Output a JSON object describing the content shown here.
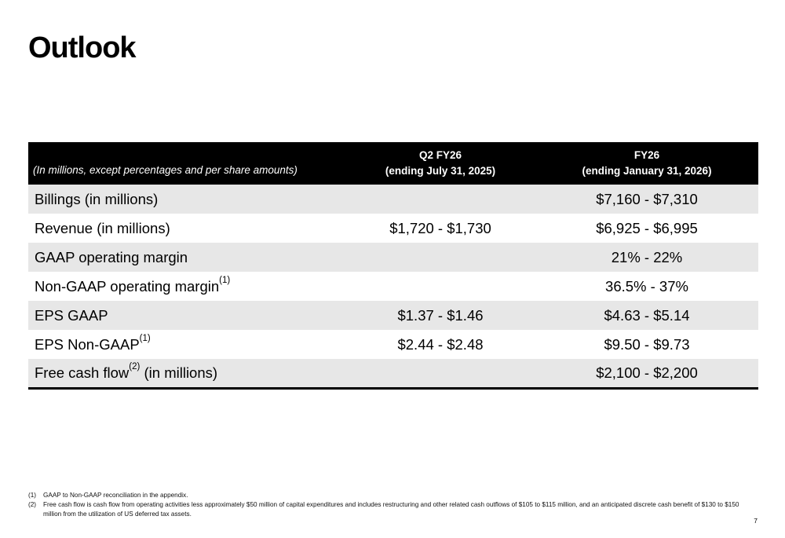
{
  "title": "Outlook",
  "table": {
    "header": {
      "note": "(In millions, except percentages and per share amounts)",
      "col2_line1": "Q2 FY26",
      "col2_line2": "(ending July 31, 2025)",
      "col3_line1": "FY26",
      "col3_line2": "(ending January 31, 2026)"
    },
    "rows": [
      {
        "label": "Billings (in millions)",
        "sup": "",
        "suffix": "",
        "q2": "",
        "fy": "$7,160 - $7,310"
      },
      {
        "label": "Revenue (in millions)",
        "sup": "",
        "suffix": "",
        "q2": "$1,720 - $1,730",
        "fy": "$6,925 - $6,995"
      },
      {
        "label": "GAAP operating margin",
        "sup": "",
        "suffix": "",
        "q2": "",
        "fy": "21% - 22%"
      },
      {
        "label": "Non-GAAP operating margin",
        "sup": "(1)",
        "suffix": "",
        "q2": "",
        "fy": "36.5% - 37%"
      },
      {
        "label": "EPS GAAP",
        "sup": "",
        "suffix": "",
        "q2": "$1.37 - $1.46",
        "fy": "$4.63 - $5.14"
      },
      {
        "label": "EPS Non-GAAP",
        "sup": "(1)",
        "suffix": "",
        "q2": "$2.44 - $2.48",
        "fy": "$9.50 - $9.73"
      },
      {
        "label": "Free cash flow",
        "sup": "(2)",
        "suffix": " (in millions)",
        "q2": "",
        "fy": "$2,100 - $2,200"
      }
    ]
  },
  "footnotes": [
    {
      "num": "(1)",
      "text": "GAAP to Non-GAAP reconciliation in the appendix."
    },
    {
      "num": "(2)",
      "text": "Free cash flow is cash flow from operating activities less approximately $50 million of capital expenditures and includes restructuring and other related cash outflows of $105 to $115 million, and an anticipated discrete cash benefit of $130 to $150 million from the utilization of US deferred tax assets."
    }
  ],
  "page_number": "7"
}
